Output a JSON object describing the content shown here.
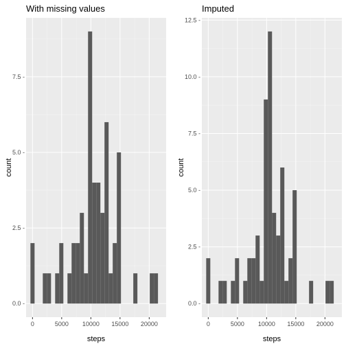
{
  "chart_data": [
    {
      "type": "bar",
      "title": "With missing values",
      "xlabel": "steps",
      "ylabel": "count",
      "xlim": [
        -1100,
        22900
      ],
      "ylim": [
        -0.45,
        9.45
      ],
      "x_ticks": [
        0,
        5000,
        10000,
        15000,
        20000
      ],
      "x_tick_labels": [
        "0",
        "5000",
        "10000",
        "15000",
        "20000"
      ],
      "y_ticks": [
        0,
        2.5,
        5,
        7.5
      ],
      "y_tick_labels": [
        "0.0 -",
        "2.5 -",
        "5.0 -",
        "7.5 -"
      ],
      "grid": true,
      "bin_width": 705,
      "bin_centers": [
        0,
        705,
        1410,
        2115,
        2820,
        3525,
        4230,
        4935,
        5640,
        6345,
        7050,
        7755,
        8460,
        9165,
        9870,
        10575,
        11280,
        11985,
        12690,
        13395,
        14100,
        14805,
        15510,
        16215,
        16920,
        17625,
        18330,
        19035,
        19740,
        20445,
        21150
      ],
      "values": [
        2,
        0,
        0,
        1,
        1,
        0,
        1,
        2,
        0,
        1,
        2,
        2,
        3,
        1,
        9,
        4,
        4,
        3,
        6,
        1,
        2,
        5,
        0,
        0,
        0,
        1,
        0,
        0,
        0,
        1,
        1
      ]
    },
    {
      "type": "bar",
      "title": "Imputed",
      "xlabel": "steps",
      "ylabel": "count",
      "xlim": [
        -1100,
        22900
      ],
      "ylim": [
        -0.6,
        12.6
      ],
      "x_ticks": [
        0,
        5000,
        10000,
        15000,
        20000
      ],
      "x_tick_labels": [
        "0",
        "5000",
        "10000",
        "15000",
        "20000"
      ],
      "y_ticks": [
        0,
        2.5,
        5,
        7.5,
        10,
        12.5
      ],
      "y_tick_labels": [
        "0.0 -",
        "2.5 -",
        "5.0 -",
        "7.5 -",
        "10.0 -",
        "12.5 -"
      ],
      "grid": true,
      "bin_width": 705,
      "bin_centers": [
        0,
        705,
        1410,
        2115,
        2820,
        3525,
        4230,
        4935,
        5640,
        6345,
        7050,
        7755,
        8460,
        9165,
        9870,
        10575,
        11280,
        11985,
        12690,
        13395,
        14100,
        14805,
        15510,
        16215,
        16920,
        17625,
        18330,
        19035,
        19740,
        20445,
        21150
      ],
      "values": [
        2,
        0,
        0,
        1,
        1,
        0,
        1,
        2,
        0,
        1,
        2,
        2,
        3,
        1,
        9,
        12,
        4,
        3,
        6,
        1,
        2,
        5,
        0,
        0,
        0,
        1,
        0,
        0,
        0,
        1,
        1
      ]
    }
  ],
  "colors": {
    "bar": "#595959",
    "panel_background": "#ebebeb",
    "grid": "#ffffff"
  }
}
